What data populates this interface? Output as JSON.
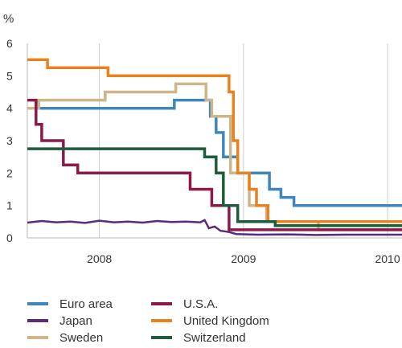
{
  "chart_data": {
    "type": "line",
    "unit_label": "%",
    "ylim": [
      0,
      6
    ],
    "yticks": [
      "0",
      "1",
      "2",
      "3",
      "4",
      "5",
      "6"
    ],
    "xlim": [
      2007.5,
      2010.1
    ],
    "xticks": [
      {
        "label": "2008",
        "x": 2008.0
      },
      {
        "label": "2009",
        "x": 2009.0
      },
      {
        "label": "2010",
        "x": 2010.0
      }
    ],
    "grid": "vertical",
    "legend_position": "bottom",
    "series": [
      {
        "name": "Euro area",
        "color": "#3f86bd",
        "step": true,
        "points": [
          [
            2007.5,
            4.0
          ],
          [
            2008.52,
            4.0
          ],
          [
            2008.52,
            4.25
          ],
          [
            2008.77,
            4.25
          ],
          [
            2008.77,
            3.75
          ],
          [
            2008.81,
            3.75
          ],
          [
            2008.81,
            3.25
          ],
          [
            2008.86,
            3.25
          ],
          [
            2008.86,
            2.5
          ],
          [
            2008.96,
            2.5
          ],
          [
            2008.96,
            2.0
          ],
          [
            2009.18,
            2.0
          ],
          [
            2009.18,
            1.5
          ],
          [
            2009.26,
            1.5
          ],
          [
            2009.26,
            1.25
          ],
          [
            2009.35,
            1.25
          ],
          [
            2009.35,
            1.0
          ],
          [
            2010.1,
            1.0
          ]
        ]
      },
      {
        "name": "Japan",
        "color": "#5b2a7d",
        "step": false,
        "points": [
          [
            2007.5,
            0.47
          ],
          [
            2007.6,
            0.52
          ],
          [
            2007.7,
            0.48
          ],
          [
            2007.8,
            0.5
          ],
          [
            2007.9,
            0.46
          ],
          [
            2008.0,
            0.53
          ],
          [
            2008.1,
            0.48
          ],
          [
            2008.2,
            0.5
          ],
          [
            2008.3,
            0.47
          ],
          [
            2008.4,
            0.52
          ],
          [
            2008.5,
            0.49
          ],
          [
            2008.6,
            0.5
          ],
          [
            2008.7,
            0.48
          ],
          [
            2008.73,
            0.55
          ],
          [
            2008.76,
            0.3
          ],
          [
            2008.8,
            0.35
          ],
          [
            2008.84,
            0.22
          ],
          [
            2008.9,
            0.18
          ],
          [
            2008.95,
            0.12
          ],
          [
            2009.1,
            0.1
          ],
          [
            2009.3,
            0.11
          ],
          [
            2009.5,
            0.09
          ],
          [
            2009.7,
            0.1
          ],
          [
            2009.9,
            0.1
          ],
          [
            2010.1,
            0.1
          ]
        ]
      },
      {
        "name": "Sweden",
        "color": "#cdb58c",
        "step": true,
        "points": [
          [
            2007.5,
            4.0
          ],
          [
            2007.58,
            4.0
          ],
          [
            2007.58,
            4.25
          ],
          [
            2008.04,
            4.25
          ],
          [
            2008.04,
            4.5
          ],
          [
            2008.53,
            4.5
          ],
          [
            2008.53,
            4.75
          ],
          [
            2008.74,
            4.75
          ],
          [
            2008.74,
            4.25
          ],
          [
            2008.78,
            4.25
          ],
          [
            2008.78,
            3.75
          ],
          [
            2008.91,
            3.75
          ],
          [
            2008.91,
            2.0
          ],
          [
            2009.04,
            2.0
          ],
          [
            2009.04,
            1.0
          ],
          [
            2009.16,
            1.0
          ],
          [
            2009.16,
            0.5
          ],
          [
            2009.52,
            0.5
          ],
          [
            2009.52,
            0.25
          ],
          [
            2010.1,
            0.25
          ]
        ]
      },
      {
        "name": "U.S.A.",
        "color": "#8b1a4a",
        "step": true,
        "points": [
          [
            2007.5,
            4.25
          ],
          [
            2007.56,
            4.25
          ],
          [
            2007.56,
            3.5
          ],
          [
            2007.6,
            3.5
          ],
          [
            2007.6,
            3.0
          ],
          [
            2007.75,
            3.0
          ],
          [
            2007.75,
            2.25
          ],
          [
            2007.85,
            2.25
          ],
          [
            2007.85,
            2.0
          ],
          [
            2008.63,
            2.0
          ],
          [
            2008.63,
            1.5
          ],
          [
            2008.78,
            1.5
          ],
          [
            2008.78,
            1.0
          ],
          [
            2008.9,
            1.0
          ],
          [
            2008.9,
            0.25
          ],
          [
            2010.1,
            0.25
          ]
        ]
      },
      {
        "name": "United Kingdom",
        "color": "#e8821e",
        "step": true,
        "points": [
          [
            2007.5,
            5.5
          ],
          [
            2007.64,
            5.5
          ],
          [
            2007.64,
            5.25
          ],
          [
            2008.06,
            5.25
          ],
          [
            2008.06,
            5.0
          ],
          [
            2008.9,
            5.0
          ],
          [
            2008.9,
            4.5
          ],
          [
            2008.93,
            4.5
          ],
          [
            2008.93,
            3.0
          ],
          [
            2008.96,
            3.0
          ],
          [
            2008.96,
            2.0
          ],
          [
            2009.04,
            2.0
          ],
          [
            2009.04,
            1.5
          ],
          [
            2009.09,
            1.5
          ],
          [
            2009.09,
            1.0
          ],
          [
            2009.17,
            1.0
          ],
          [
            2009.17,
            0.5
          ],
          [
            2010.1,
            0.5
          ]
        ]
      },
      {
        "name": "Switzerland",
        "color": "#1e5c3a",
        "step": true,
        "points": [
          [
            2007.5,
            2.75
          ],
          [
            2008.73,
            2.75
          ],
          [
            2008.73,
            2.5
          ],
          [
            2008.81,
            2.5
          ],
          [
            2008.81,
            2.0
          ],
          [
            2008.86,
            2.0
          ],
          [
            2008.86,
            1.0
          ],
          [
            2008.96,
            1.0
          ],
          [
            2008.96,
            0.5
          ],
          [
            2009.22,
            0.5
          ],
          [
            2009.22,
            0.38
          ],
          [
            2010.1,
            0.38
          ]
        ]
      }
    ]
  }
}
